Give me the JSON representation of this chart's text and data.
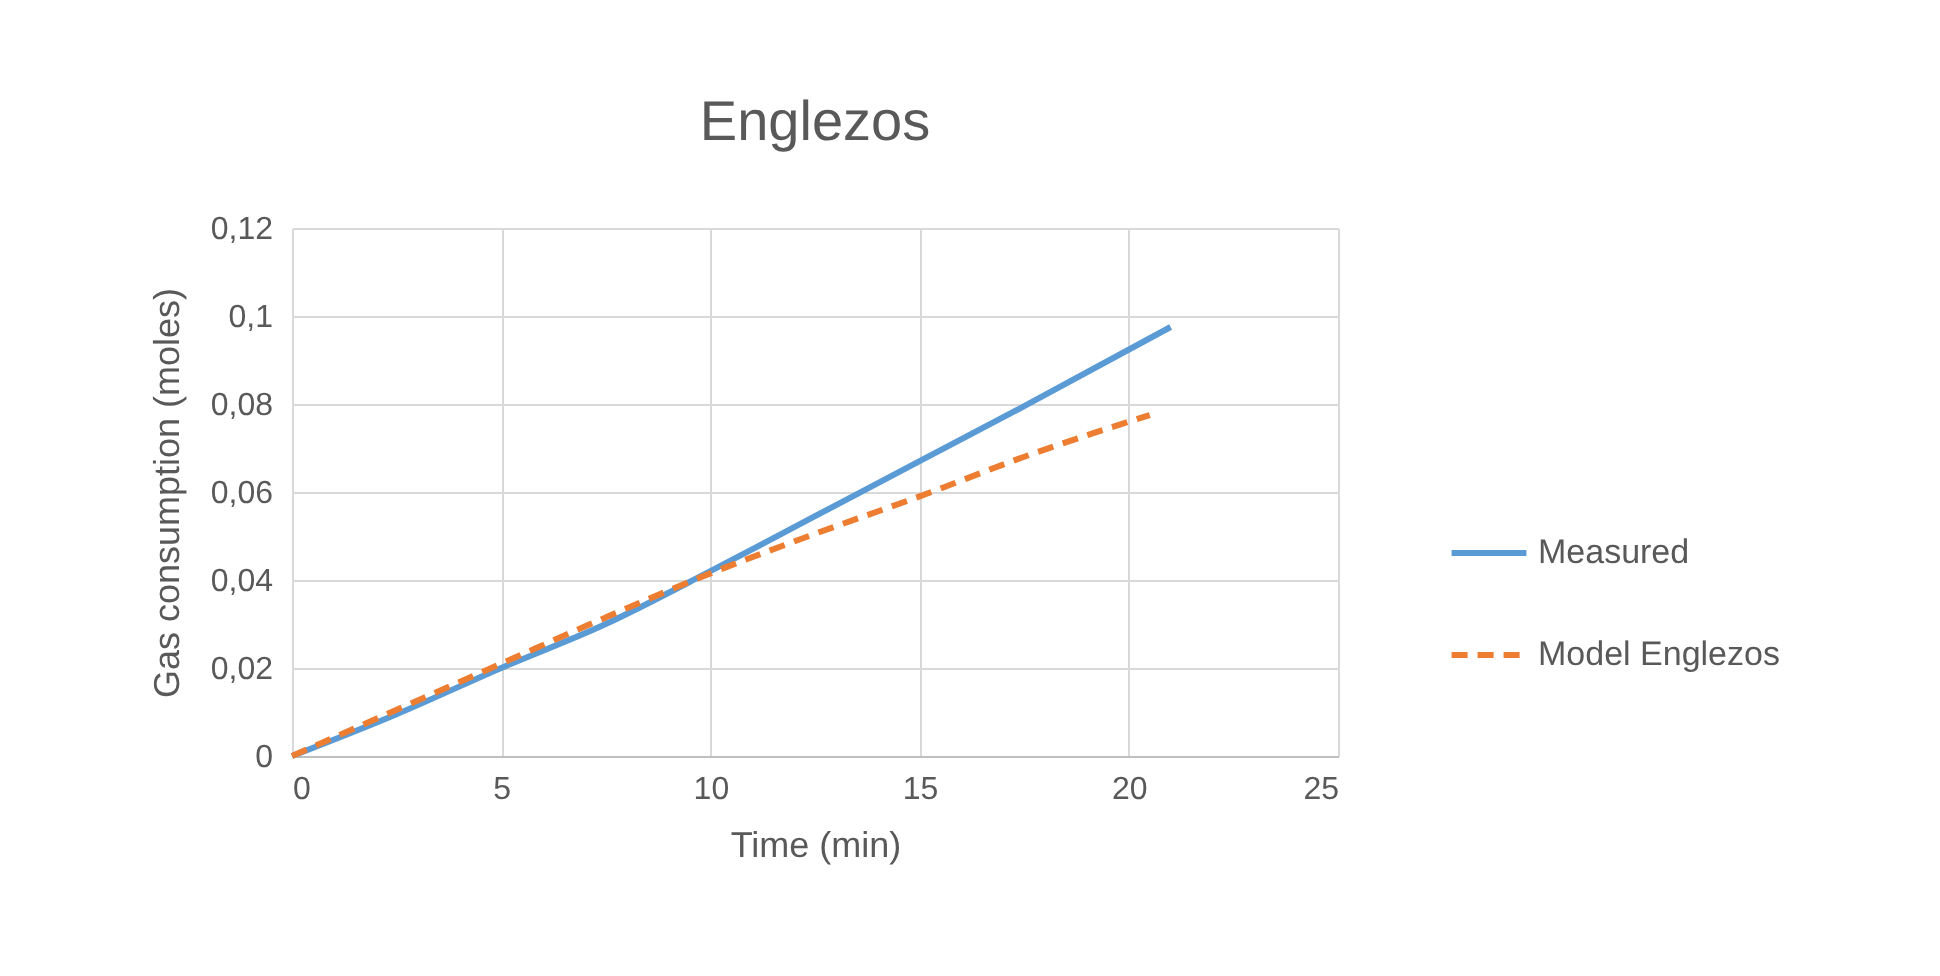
{
  "chart_data": {
    "type": "line",
    "title": "Englezos",
    "xlabel": "Time (min)",
    "ylabel": "Gas consumption (moles)",
    "xlim": [
      0,
      25
    ],
    "xticks": [
      0,
      5,
      10,
      15,
      20,
      25
    ],
    "ylim": [
      0,
      0.12
    ],
    "yticks": [
      {
        "value": 0,
        "label": "0"
      },
      {
        "value": 0.02,
        "label": "0,02"
      },
      {
        "value": 0.04,
        "label": "0,04"
      },
      {
        "value": 0.06,
        "label": "0,06"
      },
      {
        "value": 0.08,
        "label": "0,08"
      },
      {
        "value": 0.1,
        "label": "0,1"
      },
      {
        "value": 0.12,
        "label": "0,12"
      }
    ],
    "grid": true,
    "legend": "right",
    "series": [
      {
        "name": "Measured",
        "color": "#5b9bd5",
        "line_style": "solid",
        "x": [
          0,
          2.5,
          5,
          7.5,
          10,
          12.5,
          15,
          17.5,
          21
        ],
        "values": [
          0,
          0.0095,
          0.02,
          0.03,
          0.042,
          0.0545,
          0.067,
          0.0795,
          0.0975
        ]
      },
      {
        "name": "Model Englezos",
        "color": "#ed7d31",
        "line_style": "dashed",
        "x": [
          0,
          2.5,
          5,
          7.5,
          10,
          12.5,
          15,
          17.5,
          20.5
        ],
        "values": [
          0,
          0.0105,
          0.021,
          0.0315,
          0.0415,
          0.0505,
          0.059,
          0.068,
          0.0775
        ]
      }
    ]
  }
}
